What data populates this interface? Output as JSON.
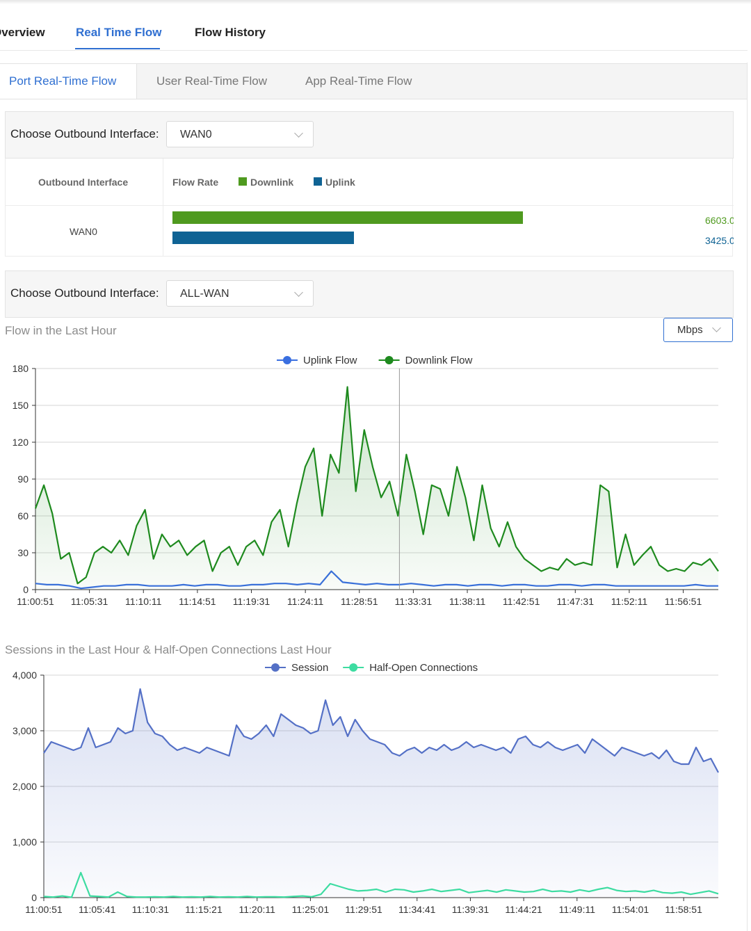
{
  "nav": {
    "tabs": [
      "Overview",
      "Real Time Flow",
      "Flow History"
    ],
    "active_index": 1
  },
  "sub_tabs": {
    "tabs": [
      "Port Real-Time Flow",
      "User Real-Time Flow",
      "App Real-Time Flow"
    ],
    "active_index": 0
  },
  "interface_filter_1": {
    "label": "Choose Outbound Interface:",
    "value": "WAN0"
  },
  "flow_table": {
    "col_interface": "Outbound Interface",
    "col_flow_rate": "Flow Rate",
    "legend_downlink": "Downlink",
    "legend_uplink": "Uplink",
    "row": {
      "interface": "WAN0",
      "downlink_value": "6603.0",
      "uplink_value": "3425.0",
      "downlink_fill": 0.504,
      "uplink_fill": 0.261
    },
    "colors": {
      "downlink": "#4f9a1f",
      "uplink": "#0f6394"
    }
  },
  "interface_filter_2": {
    "label": "Choose Outbound Interface:",
    "value": "ALL-WAN"
  },
  "flow_chart_section": {
    "title": "Flow in the Last Hour",
    "unit": "Mbps"
  },
  "sessions_chart_section": {
    "title": "Sessions in the Last Hour & Half-Open Connections Last Hour"
  },
  "chart_data": [
    {
      "type": "line",
      "x_ticks": [
        "11:00:51",
        "11:05:31",
        "11:10:11",
        "11:14:51",
        "11:19:31",
        "11:24:11",
        "11:28:51",
        "11:33:31",
        "11:38:11",
        "11:42:51",
        "11:47:31",
        "11:52:11",
        "11:56:51"
      ],
      "x_range": [
        "11:00:51",
        "12:00:51"
      ],
      "ylim": [
        0,
        180
      ],
      "y_ticks": [
        "0",
        "30",
        "60",
        "90",
        "120",
        "150",
        "180"
      ],
      "grid": true,
      "legend_position": "top-center",
      "series": [
        {
          "name": "Uplink Flow",
          "color": "#3a6fe0",
          "area": false,
          "values": [
            5,
            4,
            4,
            3,
            1,
            2,
            3,
            3,
            4,
            4,
            3,
            3,
            3,
            4,
            3,
            4,
            4,
            3,
            3,
            4,
            4,
            5,
            5,
            4,
            5,
            4,
            15,
            6,
            5,
            4,
            5,
            4,
            4,
            5,
            4,
            3,
            4,
            4,
            3,
            4,
            4,
            3,
            4,
            4,
            3,
            3,
            4,
            4,
            3,
            4,
            4,
            3,
            3,
            3,
            3,
            3,
            3,
            3,
            4,
            3,
            3
          ]
        },
        {
          "name": "Downlink Flow",
          "color": "#1e8a1e",
          "area": true,
          "values": [
            66,
            85,
            62,
            25,
            30,
            5,
            10,
            30,
            35,
            30,
            40,
            28,
            52,
            65,
            25,
            45,
            35,
            40,
            28,
            35,
            40,
            15,
            30,
            35,
            20,
            35,
            40,
            28,
            55,
            65,
            35,
            70,
            100,
            115,
            60,
            110,
            95,
            165,
            80,
            130,
            100,
            75,
            88,
            60,
            110,
            80,
            45,
            85,
            82,
            60,
            100,
            75,
            40,
            85,
            50,
            35,
            55,
            35,
            25,
            20,
            15,
            18,
            16,
            25,
            20,
            22,
            20,
            85,
            80,
            18,
            45,
            20,
            28,
            35,
            20,
            15,
            17,
            15,
            22,
            20,
            25,
            15
          ]
        }
      ],
      "cursor_x": "11:33:31"
    },
    {
      "type": "line",
      "x_ticks": [
        "11:00:51",
        "11:05:41",
        "11:10:31",
        "11:15:21",
        "11:20:11",
        "11:25:01",
        "11:29:51",
        "11:34:41",
        "11:39:31",
        "11:44:21",
        "11:49:11",
        "11:54:01",
        "11:58:51"
      ],
      "x_range": [
        "11:00:51",
        "12:00:51"
      ],
      "ylim": [
        0,
        4000
      ],
      "y_ticks": [
        "0",
        "1,000",
        "2,000",
        "3,000",
        "4,000"
      ],
      "grid": true,
      "legend_position": "top-center",
      "series": [
        {
          "name": "Session",
          "color": "#5470c6",
          "area": true,
          "values": [
            2600,
            2800,
            2750,
            2700,
            2650,
            2700,
            3050,
            2700,
            2750,
            2800,
            3050,
            2950,
            3000,
            3750,
            3150,
            2950,
            2900,
            2750,
            2650,
            2700,
            2650,
            2600,
            2700,
            2650,
            2600,
            2550,
            3100,
            2900,
            2850,
            2950,
            3100,
            2900,
            3300,
            3200,
            3100,
            3050,
            2950,
            3000,
            3550,
            3100,
            3250,
            2900,
            3200,
            3000,
            2850,
            2800,
            2750,
            2600,
            2550,
            2650,
            2700,
            2600,
            2700,
            2650,
            2750,
            2650,
            2700,
            2800,
            2700,
            2750,
            2700,
            2650,
            2700,
            2600,
            2850,
            2900,
            2750,
            2700,
            2800,
            2700,
            2650,
            2700,
            2750,
            2600,
            2850,
            2750,
            2650,
            2550,
            2700,
            2650,
            2600,
            2550,
            2600,
            2500,
            2650,
            2450,
            2400,
            2400,
            2700,
            2450,
            2500,
            2250
          ]
        },
        {
          "name": "Half-Open Connections",
          "color": "#3ddca1",
          "area": false,
          "values": [
            20,
            10,
            30,
            5,
            450,
            30,
            20,
            10,
            100,
            20,
            10,
            10,
            15,
            10,
            20,
            10,
            15,
            10,
            20,
            10,
            15,
            10,
            20,
            10,
            15,
            15,
            10,
            20,
            30,
            15,
            60,
            250,
            200,
            150,
            120,
            130,
            150,
            100,
            150,
            140,
            100,
            120,
            150,
            110,
            130,
            150,
            90,
            110,
            130,
            100,
            140,
            120,
            100,
            110,
            150,
            110,
            120,
            100,
            140,
            110,
            150,
            180,
            130,
            110,
            120,
            100,
            130,
            90,
            80,
            100,
            60,
            90,
            120,
            70
          ]
        }
      ]
    }
  ]
}
